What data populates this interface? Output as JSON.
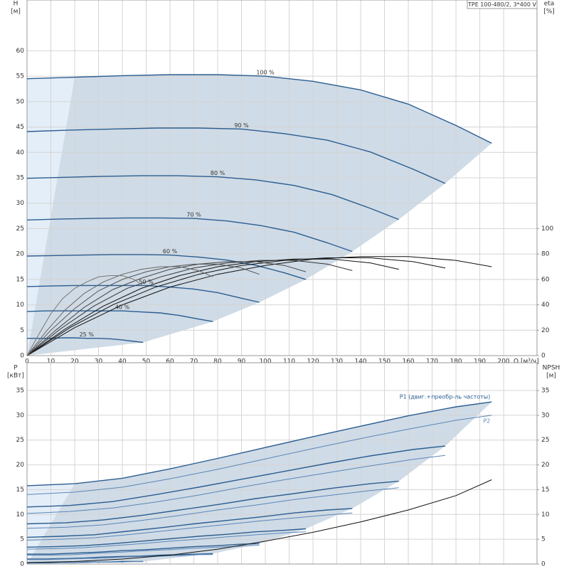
{
  "chart_data": [
    {
      "type": "line",
      "title": "TPE 100-480/2, 3*400 V",
      "y_label": "H",
      "y_unit": "[м]",
      "y2_label": "eta",
      "y2_unit": "[%]",
      "x_label": "Q [м³/ч]",
      "xlim": [
        0,
        214
      ],
      "xticks": [
        0,
        10,
        20,
        30,
        40,
        50,
        60,
        70,
        80,
        90,
        100,
        110,
        120,
        130,
        140,
        150,
        160,
        170,
        180,
        190,
        200
      ],
      "ylim": [
        0,
        70
      ],
      "yticks": [
        0,
        5,
        10,
        15,
        20,
        25,
        30,
        35,
        40,
        45,
        50,
        55,
        60
      ],
      "y2lim": [
        0,
        280
      ],
      "y2ticks": [
        0,
        20,
        40,
        60,
        80,
        100
      ],
      "grid": true,
      "series": [
        {
          "name": "100 %",
          "color": "#2b5d91",
          "x": [
            0,
            20,
            40,
            60,
            80,
            100,
            120,
            140,
            160,
            180,
            195
          ],
          "values": [
            54.5,
            54.8,
            55.1,
            55.3,
            55.3,
            55.0,
            54.0,
            52.3,
            49.5,
            45.3,
            41.8
          ]
        },
        {
          "name": "90 %",
          "color": "#2b5d91",
          "x": [
            0,
            18,
            36,
            54,
            72,
            90,
            108,
            126,
            144,
            162,
            175.5
          ],
          "values": [
            44.1,
            44.4,
            44.6,
            44.8,
            44.8,
            44.6,
            43.7,
            42.4,
            40.1,
            36.7,
            33.9
          ]
        },
        {
          "name": "80 %",
          "color": "#2b5d91",
          "x": [
            0,
            16,
            32,
            48,
            64,
            80,
            96,
            112,
            128,
            144,
            156
          ],
          "values": [
            34.9,
            35.1,
            35.3,
            35.4,
            35.4,
            35.2,
            34.6,
            33.5,
            31.7,
            29.0,
            26.8
          ]
        },
        {
          "name": "70 %",
          "color": "#2b5d91",
          "x": [
            0,
            14,
            28,
            42,
            56,
            70,
            84,
            98,
            112,
            126,
            136.5
          ],
          "values": [
            26.7,
            26.9,
            27.0,
            27.1,
            27.1,
            27.0,
            26.5,
            25.6,
            24.3,
            22.2,
            20.5
          ]
        },
        {
          "name": "60 %",
          "color": "#2b5d91",
          "x": [
            0,
            12,
            24,
            36,
            48,
            60,
            72,
            84,
            96,
            108,
            117
          ],
          "values": [
            19.6,
            19.7,
            19.8,
            19.9,
            19.9,
            19.8,
            19.4,
            18.8,
            17.8,
            16.3,
            15.0
          ]
        },
        {
          "name": "50 %",
          "color": "#2b5d91",
          "x": [
            0,
            10,
            20,
            30,
            40,
            50,
            60,
            70,
            80,
            90,
            97.5
          ],
          "values": [
            13.6,
            13.7,
            13.8,
            13.8,
            13.8,
            13.8,
            13.5,
            13.1,
            12.4,
            11.3,
            10.5
          ]
        },
        {
          "name": "40 %",
          "color": "#2b5d91",
          "x": [
            0,
            8,
            16,
            24,
            32,
            40,
            48,
            56,
            64,
            72,
            78
          ],
          "values": [
            8.7,
            8.8,
            8.8,
            8.8,
            8.8,
            8.8,
            8.6,
            8.4,
            7.9,
            7.2,
            6.7
          ]
        },
        {
          "name": "25 %",
          "color": "#2b5d91",
          "x": [
            0,
            5,
            10,
            15,
            20,
            25,
            30,
            35,
            40,
            45,
            48.75
          ],
          "values": [
            3.4,
            3.4,
            3.4,
            3.5,
            3.5,
            3.4,
            3.4,
            3.3,
            3.1,
            2.8,
            2.6
          ]
        },
        {
          "color": "#111111",
          "axis": "y2",
          "x": [
            0,
            20,
            40,
            60,
            80,
            100,
            120,
            140,
            160,
            180,
            195
          ],
          "values": [
            0,
            22,
            40,
            54,
            64,
            71,
            76,
            78,
            78,
            75,
            70
          ]
        },
        {
          "color": "#111111",
          "axis": "y2",
          "x": [
            0,
            18,
            36,
            54,
            72,
            90,
            108,
            126,
            144,
            162,
            175.5
          ],
          "values": [
            0,
            22,
            40,
            54,
            64,
            71,
            75,
            77,
            77,
            74,
            69
          ]
        },
        {
          "color": "#111111",
          "axis": "y2",
          "x": [
            0,
            16,
            32,
            48,
            64,
            80,
            96,
            112,
            128,
            144,
            156
          ],
          "values": [
            0,
            21,
            39,
            53,
            63,
            70,
            74,
            76,
            76,
            73,
            68
          ]
        },
        {
          "color": "#333333",
          "axis": "y2",
          "x": [
            0,
            14,
            28,
            42,
            56,
            70,
            84,
            98,
            112,
            126,
            136.5
          ],
          "values": [
            0,
            21,
            39,
            53,
            62,
            69,
            73,
            75,
            75,
            72,
            67
          ]
        },
        {
          "color": "#444444",
          "axis": "y2",
          "x": [
            0,
            12,
            24,
            36,
            48,
            60,
            72,
            84,
            96,
            108,
            117
          ],
          "values": [
            0,
            20,
            38,
            52,
            61,
            68,
            72,
            74,
            74,
            71,
            66
          ]
        },
        {
          "color": "#555555",
          "axis": "y2",
          "x": [
            0,
            10,
            20,
            30,
            40,
            50,
            60,
            70,
            80,
            90,
            97.5
          ],
          "values": [
            0,
            20,
            37,
            51,
            60,
            66,
            70,
            72,
            72,
            69,
            64
          ]
        },
        {
          "color": "#666666",
          "axis": "y2",
          "x": [
            0,
            8,
            16,
            24,
            32,
            40,
            48,
            56,
            64,
            72,
            78
          ],
          "values": [
            0,
            19,
            36,
            49,
            58,
            64,
            68,
            70,
            70,
            67,
            62
          ]
        },
        {
          "color": "#777777",
          "axis": "y2",
          "x": [
            0,
            5,
            10,
            15,
            20,
            25,
            30,
            35,
            40,
            45,
            48.75
          ],
          "values": [
            0,
            17,
            33,
            45,
            53,
            58,
            62,
            63,
            63,
            60,
            55
          ]
        }
      ]
    },
    {
      "type": "line",
      "y_label": "P",
      "y_unit": "[кВт]",
      "y2_label": "NPSH",
      "y2_unit": "[м]",
      "xlim": [
        0,
        214
      ],
      "ylim": [
        0,
        40.6
      ],
      "yticks": [
        0,
        5,
        10,
        15,
        20,
        25,
        30,
        35
      ],
      "y2lim": [
        0,
        40.6
      ],
      "y2ticks": [
        0,
        5,
        10,
        15,
        20,
        25,
        30,
        35
      ],
      "grid": true,
      "series": [
        {
          "name": "P1 (двиг.+преобр-ль частоты)",
          "color": "#2b5d91",
          "x": [
            0,
            20,
            40,
            60,
            80,
            100,
            120,
            140,
            160,
            180,
            195
          ],
          "values": [
            15.8,
            16.2,
            17.3,
            19.2,
            21.3,
            23.5,
            25.7,
            27.8,
            29.9,
            31.7,
            32.7
          ]
        },
        {
          "name": "P2",
          "color": "#5b86b8",
          "x": [
            0,
            20,
            40,
            60,
            80,
            100,
            120,
            140,
            160,
            180,
            195
          ],
          "values": [
            14.0,
            14.5,
            15.5,
            17.2,
            19.1,
            21.2,
            23.3,
            25.3,
            27.2,
            29.0,
            30.0
          ]
        },
        {
          "color": "#2b5d91",
          "x": [
            0,
            18,
            36,
            54,
            72,
            90,
            108,
            126,
            144,
            162,
            175.5
          ],
          "values": [
            11.5,
            11.8,
            12.6,
            14.0,
            15.5,
            17.1,
            18.7,
            20.3,
            21.8,
            23.1,
            23.8
          ]
        },
        {
          "color": "#5b86b8",
          "x": [
            0,
            18,
            36,
            54,
            72,
            90,
            108,
            126,
            144,
            162,
            175.5
          ],
          "values": [
            10.2,
            10.6,
            11.3,
            12.5,
            13.9,
            15.5,
            17.0,
            18.4,
            19.8,
            21.1,
            21.9
          ]
        },
        {
          "color": "#2b5d91",
          "x": [
            0,
            16,
            32,
            48,
            64,
            80,
            96,
            112,
            128,
            144,
            156
          ],
          "values": [
            8.1,
            8.3,
            8.9,
            9.8,
            10.9,
            12.0,
            13.2,
            14.2,
            15.3,
            16.2,
            16.7
          ]
        },
        {
          "color": "#5b86b8",
          "x": [
            0,
            16,
            32,
            48,
            64,
            80,
            96,
            112,
            128,
            144,
            156
          ],
          "values": [
            7.2,
            7.4,
            7.9,
            8.8,
            9.8,
            10.9,
            11.9,
            13.0,
            13.9,
            14.8,
            15.4
          ]
        },
        {
          "color": "#2b5d91",
          "x": [
            0,
            14,
            28,
            42,
            56,
            70,
            84,
            98,
            112,
            126,
            136.5
          ],
          "values": [
            5.4,
            5.6,
            5.9,
            6.6,
            7.3,
            8.1,
            8.8,
            9.5,
            10.3,
            10.9,
            11.2
          ]
        },
        {
          "color": "#5b86b8",
          "x": [
            0,
            14,
            28,
            42,
            56,
            70,
            84,
            98,
            112,
            126,
            136.5
          ],
          "values": [
            4.8,
            5.0,
            5.3,
            5.9,
            6.6,
            7.3,
            8.0,
            8.7,
            9.3,
            9.9,
            10.3
          ]
        },
        {
          "color": "#2b5d91",
          "x": [
            0,
            12,
            24,
            36,
            48,
            60,
            72,
            84,
            96,
            108,
            117
          ],
          "values": [
            3.4,
            3.5,
            3.7,
            4.1,
            4.6,
            5.1,
            5.6,
            6.0,
            6.5,
            6.8,
            7.1
          ]
        },
        {
          "color": "#5b86b8",
          "x": [
            0,
            12,
            24,
            36,
            48,
            60,
            72,
            84,
            96,
            108,
            117
          ],
          "values": [
            3.0,
            3.1,
            3.3,
            3.7,
            4.1,
            4.6,
            5.0,
            5.5,
            5.9,
            6.3,
            6.5
          ]
        },
        {
          "color": "#2b5d91",
          "x": [
            0,
            10,
            20,
            30,
            40,
            50,
            60,
            70,
            80,
            90,
            97.5
          ],
          "values": [
            2.0,
            2.0,
            2.2,
            2.4,
            2.7,
            2.9,
            3.2,
            3.5,
            3.7,
            4.0,
            4.1
          ]
        },
        {
          "color": "#5b86b8",
          "x": [
            0,
            10,
            20,
            30,
            40,
            50,
            60,
            70,
            80,
            90,
            97.5
          ],
          "values": [
            1.8,
            1.8,
            1.9,
            2.2,
            2.4,
            2.7,
            2.9,
            3.2,
            3.4,
            3.6,
            3.8
          ]
        },
        {
          "color": "#2b5d91",
          "x": [
            0,
            8,
            16,
            24,
            32,
            40,
            48,
            56,
            64,
            72,
            78
          ],
          "values": [
            1.0,
            1.0,
            1.1,
            1.2,
            1.4,
            1.5,
            1.6,
            1.8,
            1.9,
            2.0,
            2.1
          ]
        },
        {
          "color": "#5b86b8",
          "x": [
            0,
            8,
            16,
            24,
            32,
            40,
            48,
            56,
            64,
            72,
            78
          ],
          "values": [
            0.9,
            0.9,
            1.0,
            1.1,
            1.2,
            1.4,
            1.5,
            1.6,
            1.7,
            1.9,
            1.9
          ]
        },
        {
          "color": "#2b5d91",
          "x": [
            0,
            5,
            10,
            15,
            20,
            25,
            30,
            35,
            40,
            45,
            48.75
          ],
          "values": [
            0.2,
            0.3,
            0.3,
            0.3,
            0.3,
            0.4,
            0.4,
            0.4,
            0.5,
            0.5,
            0.5
          ]
        },
        {
          "color": "#5b86b8",
          "x": [
            0,
            5,
            10,
            15,
            20,
            25,
            30,
            35,
            40,
            45,
            48.75
          ],
          "values": [
            0.2,
            0.2,
            0.2,
            0.3,
            0.3,
            0.3,
            0.4,
            0.4,
            0.4,
            0.5,
            0.5
          ]
        },
        {
          "color": "#111111",
          "axis": "y2",
          "x": [
            0,
            20,
            40,
            60,
            80,
            100,
            120,
            140,
            160,
            180,
            195
          ],
          "values": [
            0.3,
            0.5,
            1.0,
            1.8,
            3.0,
            4.6,
            6.4,
            8.5,
            10.9,
            13.8,
            17.0
          ]
        }
      ]
    }
  ]
}
